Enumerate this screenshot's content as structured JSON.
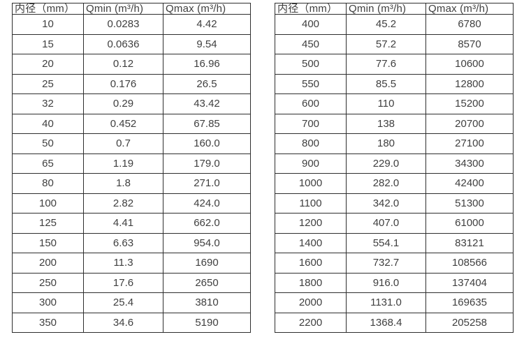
{
  "page": {
    "background": "#ffffff",
    "text_color": "#3f3f3f",
    "border_color": "#2e2e2e"
  },
  "tables": [
    {
      "name": "flow-table-small-diameters",
      "headers": [
        "内径（mm）",
        "Qmin (m³/h)",
        "Qmax (m³/h)"
      ],
      "rows": [
        [
          "10",
          "0.0283",
          "4.42"
        ],
        [
          "15",
          "0.0636",
          "9.54"
        ],
        [
          "20",
          "0.12",
          "16.96"
        ],
        [
          "25",
          "0.176",
          "26.5"
        ],
        [
          "32",
          "0.29",
          "43.42"
        ],
        [
          "40",
          "0.452",
          "67.85"
        ],
        [
          "50",
          "0.7",
          "160.0"
        ],
        [
          "65",
          "1.19",
          "179.0"
        ],
        [
          "80",
          "1.8",
          "271.0"
        ],
        [
          "100",
          "2.82",
          "424.0"
        ],
        [
          "125",
          "4.41",
          "662.0"
        ],
        [
          "150",
          "6.63",
          "954.0"
        ],
        [
          "200",
          "11.3",
          "1690"
        ],
        [
          "250",
          "17.6",
          "2650"
        ],
        [
          "300",
          "25.4",
          "3810"
        ],
        [
          "350",
          "34.6",
          "5190"
        ]
      ]
    },
    {
      "name": "flow-table-large-diameters",
      "headers": [
        "内径（mm）",
        "Qmin (m³/h)",
        "Qmax (m³/h)"
      ],
      "rows": [
        [
          "400",
          "45.2",
          "6780"
        ],
        [
          "450",
          "57.2",
          "8570"
        ],
        [
          "500",
          "77.6",
          "10600"
        ],
        [
          "550",
          "85.5",
          "12800"
        ],
        [
          "600",
          "110",
          "15200"
        ],
        [
          "700",
          "138",
          "20700"
        ],
        [
          "800",
          "180",
          "27100"
        ],
        [
          "900",
          "229.0",
          "34300"
        ],
        [
          "1000",
          "282.0",
          "42400"
        ],
        [
          "1100",
          "342.0",
          "51300"
        ],
        [
          "1200",
          "407.0",
          "61000"
        ],
        [
          "1400",
          "554.1",
          "83121"
        ],
        [
          "1600",
          "732.7",
          "108566"
        ],
        [
          "1800",
          "916.0",
          "137404"
        ],
        [
          "2000",
          "1131.0",
          "169635"
        ],
        [
          "2200",
          "1368.4",
          "205258"
        ]
      ]
    }
  ]
}
